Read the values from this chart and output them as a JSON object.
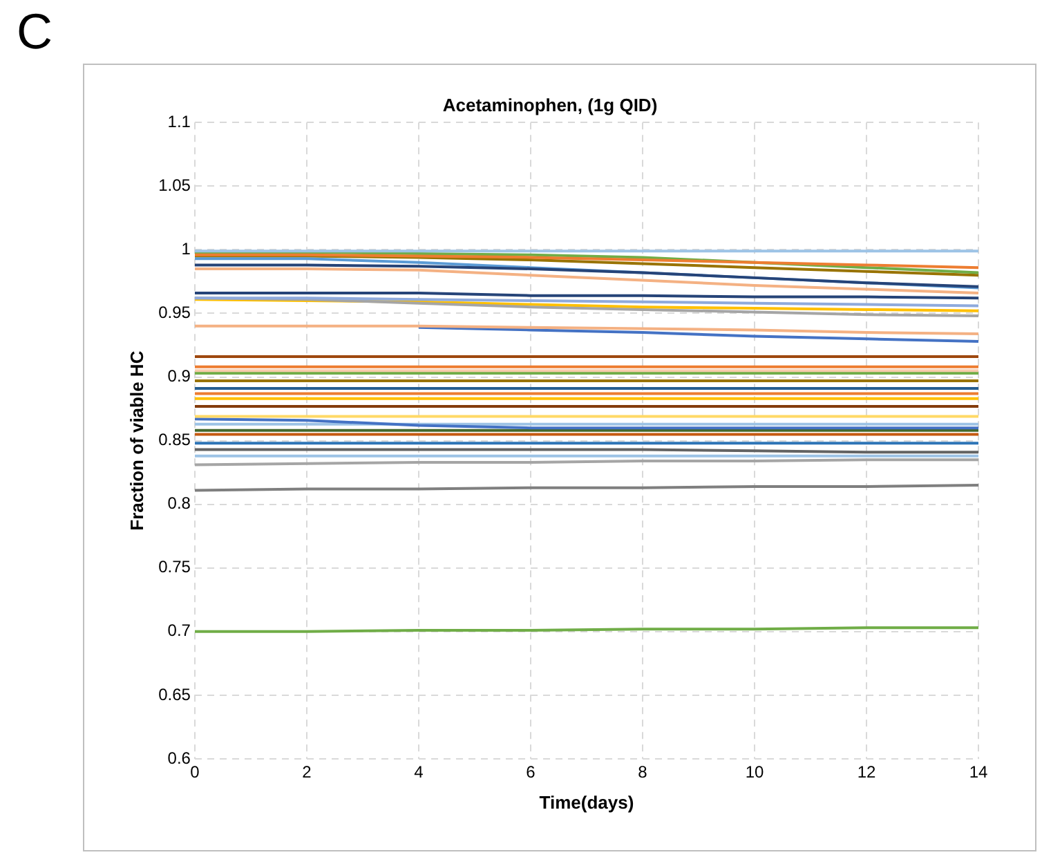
{
  "chart_data": {
    "type": "line",
    "title": "Acetaminophen, (1g QID)",
    "xlabel": "Time(days)",
    "ylabel": "Fraction of viable HC",
    "annotations": [
      "C"
    ],
    "x": [
      0,
      2,
      4,
      6,
      8,
      10,
      12,
      14
    ],
    "xlim": [
      0,
      14
    ],
    "xticks": [
      0,
      2,
      4,
      6,
      8,
      10,
      12,
      14
    ],
    "ylim": [
      0.6,
      1.1
    ],
    "yticks": [
      0.6,
      0.65,
      0.7,
      0.75,
      0.8,
      0.85,
      0.9,
      0.95,
      1,
      1.05,
      1.1
    ],
    "grid": true,
    "legend": false,
    "marker": "none",
    "line_style": "solid",
    "series": [
      {
        "color": "#9dc3e6",
        "values": [
          0.999,
          0.999,
          0.999,
          0.999,
          0.999,
          0.999,
          0.999,
          0.999
        ]
      },
      {
        "color": "#ed7d31",
        "values": [
          0.996,
          0.996,
          0.995,
          0.994,
          0.992,
          0.99,
          0.988,
          0.986
        ]
      },
      {
        "color": "#70ad47",
        "values": [
          0.998,
          0.998,
          0.997,
          0.996,
          0.994,
          0.99,
          0.986,
          0.982
        ]
      },
      {
        "color": "#264478",
        "values": [
          0.988,
          0.988,
          0.987,
          0.985,
          0.982,
          0.978,
          0.974,
          0.971
        ]
      },
      {
        "color": "#5b9bd5",
        "values": [
          0.993,
          0.993,
          0.99,
          0.986,
          0.982,
          0.978,
          0.974,
          0.97
        ]
      },
      {
        "color": "#f4b183",
        "values": [
          0.985,
          0.985,
          0.984,
          0.98,
          0.976,
          0.972,
          0.969,
          0.966
        ]
      },
      {
        "color": "#997300",
        "values": [
          0.995,
          0.995,
          0.994,
          0.992,
          0.989,
          0.986,
          0.983,
          0.98
        ]
      },
      {
        "color": "#264478",
        "values": [
          0.966,
          0.966,
          0.966,
          0.964,
          0.964,
          0.963,
          0.963,
          0.962
        ]
      },
      {
        "color": "#8faadc",
        "values": [
          0.962,
          0.962,
          0.961,
          0.96,
          0.959,
          0.958,
          0.957,
          0.956
        ]
      },
      {
        "color": "#a5a5a5",
        "values": [
          0.962,
          0.961,
          0.958,
          0.955,
          0.953,
          0.951,
          0.949,
          0.948
        ]
      },
      {
        "color": "#ffc000",
        "values": [
          0.961,
          0.96,
          0.959,
          0.957,
          0.955,
          0.954,
          0.953,
          0.952
        ]
      },
      {
        "color": "#f4b183",
        "values": [
          0.94,
          0.94,
          0.94,
          0.939,
          0.938,
          0.937,
          0.935,
          0.934
        ]
      },
      {
        "color": "#4472c4",
        "values": [
          null,
          null,
          0.939,
          0.937,
          0.935,
          0.932,
          0.93,
          0.928
        ]
      },
      {
        "color": "#9e480e",
        "values": [
          0.916,
          0.916,
          0.916,
          0.916,
          0.916,
          0.916,
          0.916,
          0.916
        ]
      },
      {
        "color": "#ed7d31",
        "values": [
          0.908,
          0.908,
          0.908,
          0.908,
          0.908,
          0.908,
          0.908,
          0.908
        ]
      },
      {
        "color": "#f8cbad",
        "values": [
          0.905,
          0.905,
          0.905,
          0.905,
          0.905,
          0.905,
          0.905,
          0.905
        ]
      },
      {
        "color": "#70ad47",
        "values": [
          0.903,
          0.903,
          0.903,
          0.903,
          0.903,
          0.903,
          0.903,
          0.903
        ]
      },
      {
        "color": "#997300",
        "values": [
          0.897,
          0.897,
          0.897,
          0.897,
          0.897,
          0.897,
          0.897,
          0.897
        ]
      },
      {
        "color": "#255e91",
        "values": [
          0.891,
          0.891,
          0.891,
          0.891,
          0.891,
          0.891,
          0.891,
          0.891
        ]
      },
      {
        "color": "#ed7d31",
        "values": [
          0.887,
          0.887,
          0.887,
          0.887,
          0.887,
          0.887,
          0.887,
          0.887
        ]
      },
      {
        "color": "#ffc000",
        "values": [
          0.883,
          0.883,
          0.883,
          0.883,
          0.883,
          0.883,
          0.883,
          0.883
        ]
      },
      {
        "color": "#843c0c",
        "values": [
          0.877,
          0.877,
          0.877,
          0.877,
          0.877,
          0.877,
          0.877,
          0.877
        ]
      },
      {
        "color": "#ffd966",
        "values": [
          0.869,
          0.869,
          0.869,
          0.869,
          0.869,
          0.869,
          0.869,
          0.869
        ]
      },
      {
        "color": "#4472c4",
        "values": [
          0.867,
          0.866,
          0.862,
          0.86,
          0.86,
          0.86,
          0.86,
          0.86
        ]
      },
      {
        "color": "#9dc3e6",
        "values": [
          0.863,
          0.863,
          0.863,
          0.863,
          0.863,
          0.863,
          0.863,
          0.863
        ]
      },
      {
        "color": "#43682b",
        "values": [
          0.858,
          0.858,
          0.858,
          0.858,
          0.858,
          0.858,
          0.858,
          0.858
        ]
      },
      {
        "color": "#c55a11",
        "values": [
          0.855,
          0.855,
          0.855,
          0.855,
          0.855,
          0.855,
          0.855,
          0.855
        ]
      },
      {
        "color": "#2e75b6",
        "values": [
          0.848,
          0.848,
          0.848,
          0.848,
          0.848,
          0.848,
          0.848,
          0.848
        ]
      },
      {
        "color": "#636363",
        "values": [
          0.843,
          0.843,
          0.843,
          0.843,
          0.843,
          0.842,
          0.841,
          0.841
        ]
      },
      {
        "color": "#9dc3e6",
        "values": [
          0.838,
          0.838,
          0.838,
          0.838,
          0.838,
          0.838,
          0.838,
          0.838
        ]
      },
      {
        "color": "#a5a5a5",
        "values": [
          0.831,
          0.832,
          0.833,
          0.833,
          0.834,
          0.834,
          0.835,
          0.835
        ]
      },
      {
        "color": "#7f7f7f",
        "values": [
          0.811,
          0.812,
          0.812,
          0.813,
          0.813,
          0.814,
          0.814,
          0.815
        ]
      },
      {
        "color": "#70ad47",
        "values": [
          0.7,
          0.7,
          0.701,
          0.701,
          0.702,
          0.702,
          0.703,
          0.703
        ]
      }
    ]
  }
}
